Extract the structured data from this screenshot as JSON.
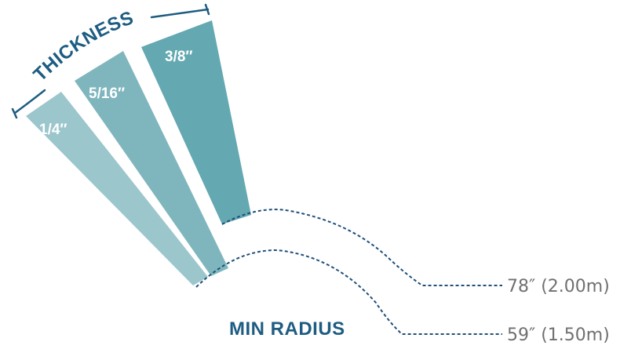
{
  "thickness_title": "THICKNESS",
  "min_radius_title": "MIN RADIUS",
  "strips": [
    {
      "label": "1/4″",
      "color": "#9bc6cc"
    },
    {
      "label": "5/16″",
      "color": "#7fb6bd"
    },
    {
      "label": "3/8″",
      "color": "#64a8b1"
    }
  ],
  "radii": [
    {
      "label": "78″ (2.00m)"
    },
    {
      "label": "59″ (1.50m)"
    }
  ],
  "colors": {
    "title": "#1e5c82",
    "dashed_line": "#1e4f7a",
    "value_text": "#707070"
  }
}
